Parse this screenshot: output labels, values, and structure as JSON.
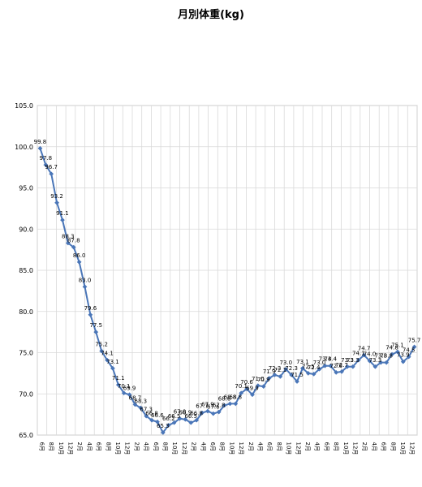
{
  "chart_data": {
    "type": "line",
    "title": "月別体重(kg)",
    "xlabel": "",
    "ylabel": "",
    "ylim": [
      65,
      105
    ],
    "yticks": [
      "65.0",
      "70.0",
      "75.0",
      "80.0",
      "85.0",
      "90.0",
      "95.0",
      "100.0",
      "105.0"
    ],
    "grid": true,
    "legend": "none",
    "line_color": "#4a76b8",
    "grid_color": "#d9d9d9",
    "x_tick_labels": [
      "6月",
      "8月",
      "10月",
      "12月",
      "2月",
      "4月",
      "6月",
      "8月",
      "10月",
      "12月",
      "2月",
      "4月",
      "6月",
      "8月",
      "10月",
      "12月",
      "2月",
      "4月",
      "6月",
      "8月",
      "10月",
      "12月",
      "2月",
      "4月",
      "6月",
      "8月",
      "10月",
      "12月",
      "2月",
      "4月",
      "6月",
      "8月",
      "10月",
      "12月",
      "2月",
      "4月",
      "6月",
      "8月",
      "10月",
      "12月"
    ],
    "values": [
      99.8,
      97.8,
      96.7,
      93.2,
      91.1,
      88.3,
      87.8,
      86.0,
      83.0,
      79.6,
      77.5,
      75.2,
      74.1,
      73.1,
      71.1,
      70.1,
      69.9,
      68.7,
      68.3,
      67.3,
      66.8,
      66.6,
      65.3,
      66.2,
      66.5,
      67.0,
      66.9,
      66.5,
      66.8,
      67.7,
      67.9,
      67.6,
      67.8,
      68.6,
      68.8,
      68.8,
      70.1,
      70.6,
      69.9,
      71.0,
      70.9,
      71.9,
      72.3,
      72.1,
      73.0,
      72.3,
      71.5,
      73.1,
      72.5,
      72.4,
      73.0,
      73.4,
      73.4,
      72.6,
      72.7,
      73.3,
      73.3,
      74.1,
      74.7,
      74.0,
      73.3,
      73.8,
      73.8,
      74.8,
      75.1,
      73.9,
      74.5,
      75.7
    ],
    "data_labels": [
      "99.8",
      "97.8",
      "96.7",
      "93.2",
      "91.1",
      "88.3",
      "87.8",
      "86.0",
      "83.0",
      "79.6",
      "77.5",
      "75.2",
      "74.1",
      "73.1",
      "71.1",
      "70.1",
      "69.9",
      "68.7",
      "68.3",
      "67.3",
      "66.8",
      "66.6",
      "65.3",
      "66.2",
      "66.5",
      "67.0",
      "66.9",
      "66.5",
      "66.8",
      "67.7",
      "67.9",
      "67.6",
      "67.8",
      "68.6",
      "68.8",
      "68.8",
      "70.1",
      "70.6",
      "69.9",
      "71.0",
      "70.9",
      "71.9",
      "72.3",
      "72.1",
      "73.0",
      "72.3",
      "71.5",
      "73.1",
      "72.5",
      "72.4",
      "73.0",
      "73.4",
      "73.4",
      "72.6",
      "72.7",
      "73.3",
      "73.3",
      "74.1",
      "74.7",
      "74.0",
      "73.3",
      "73.8",
      "73.8",
      "74.8",
      "75.1",
      "73.9",
      "74.5",
      "75.7"
    ]
  }
}
